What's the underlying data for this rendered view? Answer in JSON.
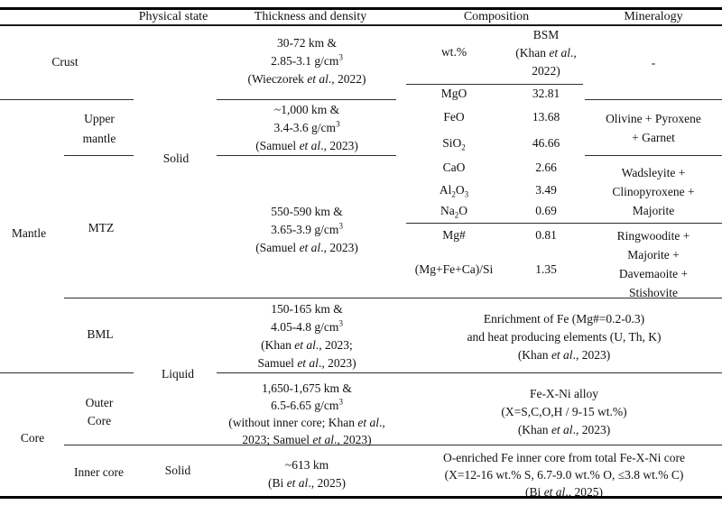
{
  "header": {
    "physical_state": "Physical state",
    "thickness_density": "Thickness and density",
    "composition": "Composition",
    "mineralogy": "Mineralogy"
  },
  "regions": {
    "crust": "Crust",
    "mantle": "Mantle",
    "core": "Core"
  },
  "layers": {
    "upper_mantle": "Upper<br>mantle",
    "mtz": "MTZ",
    "bml": "BML",
    "outer_core": "Outer<br>Core",
    "inner_core": "Inner core"
  },
  "physical_state": {
    "mantle_solid": "Solid",
    "liquid": "Liquid",
    "inner_core_solid": "Solid"
  },
  "thickness": {
    "crust": "30-72 km &amp;<br>2.85-3.1 g/cm<sup>3</sup><br>(Wieczorek <i>et al</i>., 2022)",
    "upper_mantle": "~1,000 km &amp;<br>3.4-3.6 g/cm<sup>3</sup><br>(Samuel <i>et al</i>., 2023)",
    "mtz": "550-590 km &amp;<br>3.65-3.9 g/cm<sup>3</sup><br>(Samuel <i>et al</i>., 2023)",
    "bml": "150-165 km &amp;<br>4.05-4.8 g/cm<sup>3</sup><br>(Khan <i>et al</i>., 2023;<br>Samuel <i>et al</i>., 2023)",
    "outer_core": "1,650-1,675 km &amp;<br>6.5-6.65 g/cm<sup>3</sup><br>(without inner core; Khan <i>et al</i>.,<br>2023; Samuel <i>et al</i>., 2023)",
    "inner_core": "~613 km<br>(Bi <i>et al</i>., 2025)"
  },
  "composition": {
    "unit": "wt.%",
    "model": "BSM<br>(Khan <i>et al</i>.,<br>2022)",
    "rows": [
      {
        "label": "MgO",
        "value": "32.81"
      },
      {
        "label": "FeO",
        "value": "13.68"
      },
      {
        "label": "SiO<sub>2</sub>",
        "value": "46.66"
      },
      {
        "label": "CaO",
        "value": "2.66"
      },
      {
        "label": "Al<sub>2</sub>O<sub>3</sub>",
        "value": "3.49"
      },
      {
        "label": "Na<sub>2</sub>O",
        "value": "0.69"
      },
      {
        "label": "Mg#",
        "value": "0.81"
      },
      {
        "label": "(Mg+Fe+Ca)/Si",
        "value": "1.35"
      }
    ],
    "bml": "Enrichment of Fe (Mg#=0.2-0.3)<br>and heat producing elements (U, Th, K)<br>(Khan <i>et al</i>., 2023)",
    "outer_core": "Fe-X-Ni alloy<br>(X=S,C,O,H / 9-15 wt.%)<br>(Khan <i>et al</i>., 2023)",
    "inner_core": "O-enriched Fe inner core from total Fe-X-Ni core<br>(X=12-16 wt.% S, 6.7-9.0 wt.% O, ≤3.8 wt.% C)<br>(Bi <i>et al</i>., 2025)"
  },
  "mineralogy": {
    "crust": "-",
    "upper_mantle": "Olivine + Pyroxene<br>+ Garnet",
    "mtz_upper": "Wadsleyite +<br>Clinopyroxene +<br>Majorite",
    "mtz_lower": "Ringwoodite +<br>Majorite +<br>Davemaoite +<br>Stishovite"
  }
}
